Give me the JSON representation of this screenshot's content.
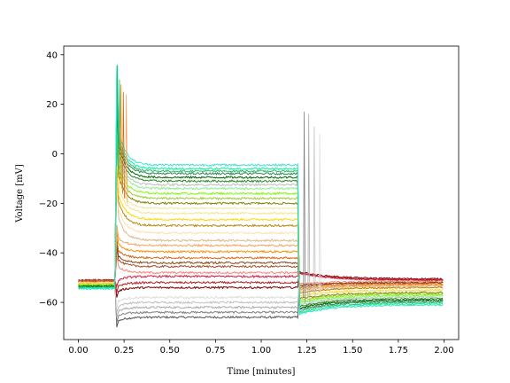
{
  "chart_data": {
    "type": "line",
    "xlabel": "Time [minutes]",
    "ylabel": "Voltage [mV]",
    "xlim": [
      -0.08,
      2.08
    ],
    "ylim": [
      -75,
      43.5
    ],
    "xticks": [
      0.0,
      0.25,
      0.5,
      0.75,
      1.0,
      1.25,
      1.5,
      1.75,
      2.0
    ],
    "xtick_labels": [
      "0.00",
      "0.25",
      "0.50",
      "0.75",
      "1.00",
      "1.25",
      "1.50",
      "1.75",
      "2.00"
    ],
    "yticks": [
      -60,
      -40,
      -20,
      0,
      20,
      40
    ],
    "ytick_labels": [
      "−60",
      "−40",
      "−20",
      "0",
      "20",
      "40"
    ],
    "grid": false,
    "legend": false,
    "step_on": 0.2,
    "step_off": 1.2,
    "series": [
      {
        "color": "#555555",
        "baseline": -51.5,
        "step": -66.0,
        "after": -51.0
      },
      {
        "color": "#808080",
        "baseline": -51.5,
        "step": -64.0,
        "after": -51.2
      },
      {
        "color": "#a9a9a9",
        "baseline": -51.5,
        "step": -62.0,
        "after": -51.2
      },
      {
        "color": "#c0c0c0",
        "baseline": -51.5,
        "step": -60.0,
        "after": -51.2
      },
      {
        "color": "#dcdcdc",
        "baseline": -51.5,
        "step": -58.0,
        "after": -51.3
      },
      {
        "color": "#800000",
        "baseline": -51.0,
        "step": -54.0,
        "after": -50.5
      },
      {
        "color": "#b22222",
        "baseline": -51.0,
        "step": -52.0,
        "after": -51.0
      },
      {
        "color": "#dc143c",
        "baseline": -51.2,
        "step": -49.5,
        "after": -51.0
      },
      {
        "color": "#fa8072",
        "baseline": -51.3,
        "step": -48.0,
        "after": -51.5
      },
      {
        "color": "#a0522d",
        "baseline": -51.3,
        "step": -45.5,
        "after": -52.0
      },
      {
        "color": "#8b4513",
        "baseline": -51.5,
        "step": -44.0,
        "after": -52.0
      },
      {
        "color": "#d2691e",
        "baseline": -51.5,
        "step": -42.0,
        "after": -52.5
      },
      {
        "color": "#ff8c00",
        "baseline": -52.0,
        "step": -39.5,
        "after": -53.0
      },
      {
        "color": "#f4a460",
        "baseline": -52.0,
        "step": -37.0,
        "after": -53.0
      },
      {
        "color": "#deb887",
        "baseline": -52.0,
        "step": -35.0,
        "after": -53.5
      },
      {
        "color": "#ffdead",
        "baseline": -52.0,
        "step": -32.0,
        "after": -54.0
      },
      {
        "color": "#b8860b",
        "baseline": -52.5,
        "step": -29.0,
        "after": -54.0
      },
      {
        "color": "#ffd700",
        "baseline": -52.5,
        "step": -26.5,
        "after": -55.0
      },
      {
        "color": "#f0e68c",
        "baseline": -52.5,
        "step": -24.0,
        "after": -55.0
      },
      {
        "color": "#eee8aa",
        "baseline": -53.0,
        "step": -22.0,
        "after": -55.5
      },
      {
        "color": "#808000",
        "baseline": -53.0,
        "step": -20.0,
        "after": -56.0
      },
      {
        "color": "#9acd32",
        "baseline": -53.0,
        "step": -18.0,
        "after": -56.5
      },
      {
        "color": "#7cfc00",
        "baseline": -53.0,
        "step": -16.0,
        "after": -57.0
      },
      {
        "color": "#90ee90",
        "baseline": -53.5,
        "step": -14.0,
        "after": -57.5
      },
      {
        "color": "#bdbdbd",
        "baseline": -53.5,
        "step": -12.5,
        "after": -58.0
      },
      {
        "color": "#228b22",
        "baseline": -53.5,
        "step": -11.0,
        "after": -58.5
      },
      {
        "color": "#006400",
        "baseline": -53.5,
        "step": -9.5,
        "after": -59.0
      },
      {
        "color": "#2e8b57",
        "baseline": -54.0,
        "step": -8.0,
        "after": -59.5
      },
      {
        "color": "#3cb371",
        "baseline": -54.0,
        "step": -7.0,
        "after": -60.0
      },
      {
        "color": "#00fa9a",
        "baseline": -54.0,
        "step": -6.0,
        "after": -60.5
      },
      {
        "color": "#40e0d0",
        "baseline": -54.5,
        "step": -4.5,
        "after": -61.0
      }
    ]
  }
}
